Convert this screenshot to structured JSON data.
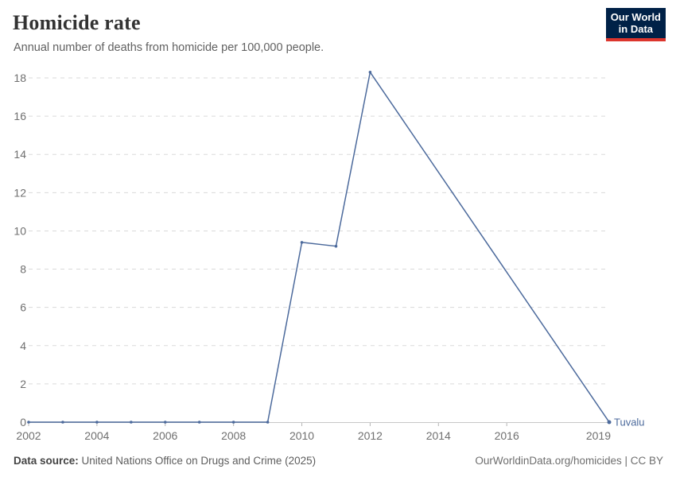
{
  "logo": {
    "line1": "Our World",
    "line2": "in Data",
    "bg_color": "#002147",
    "accent_color": "#dc352d"
  },
  "chart_data": {
    "type": "line",
    "title": "Homicide rate",
    "subtitle": "Annual number of deaths from homicide per 100,000 people.",
    "entity_label": "Tuvalu",
    "series": [
      {
        "name": "Tuvalu",
        "x": [
          2002,
          2003,
          2004,
          2005,
          2006,
          2007,
          2008,
          2009,
          2010,
          2011,
          2012,
          2019
        ],
        "values": [
          0,
          0,
          0,
          0,
          0,
          0,
          0,
          0,
          9.4,
          9.2,
          18.3,
          0
        ]
      }
    ],
    "xlim": [
      2002,
      2019
    ],
    "ylim": [
      0,
      18
    ],
    "yticks": [
      0,
      2,
      4,
      6,
      8,
      10,
      12,
      14,
      16,
      18
    ],
    "xticks": [
      2002,
      2004,
      2006,
      2008,
      2010,
      2012,
      2014,
      2016,
      2019
    ],
    "grid": true,
    "legend_position": "end-of-line",
    "line_color": "#4C6A9C"
  },
  "footer": {
    "source_label": "Data source:",
    "source_text": " United Nations Office on Drugs and Crime (2025)",
    "right_text": "OurWorldinData.org/homicides | CC BY"
  }
}
